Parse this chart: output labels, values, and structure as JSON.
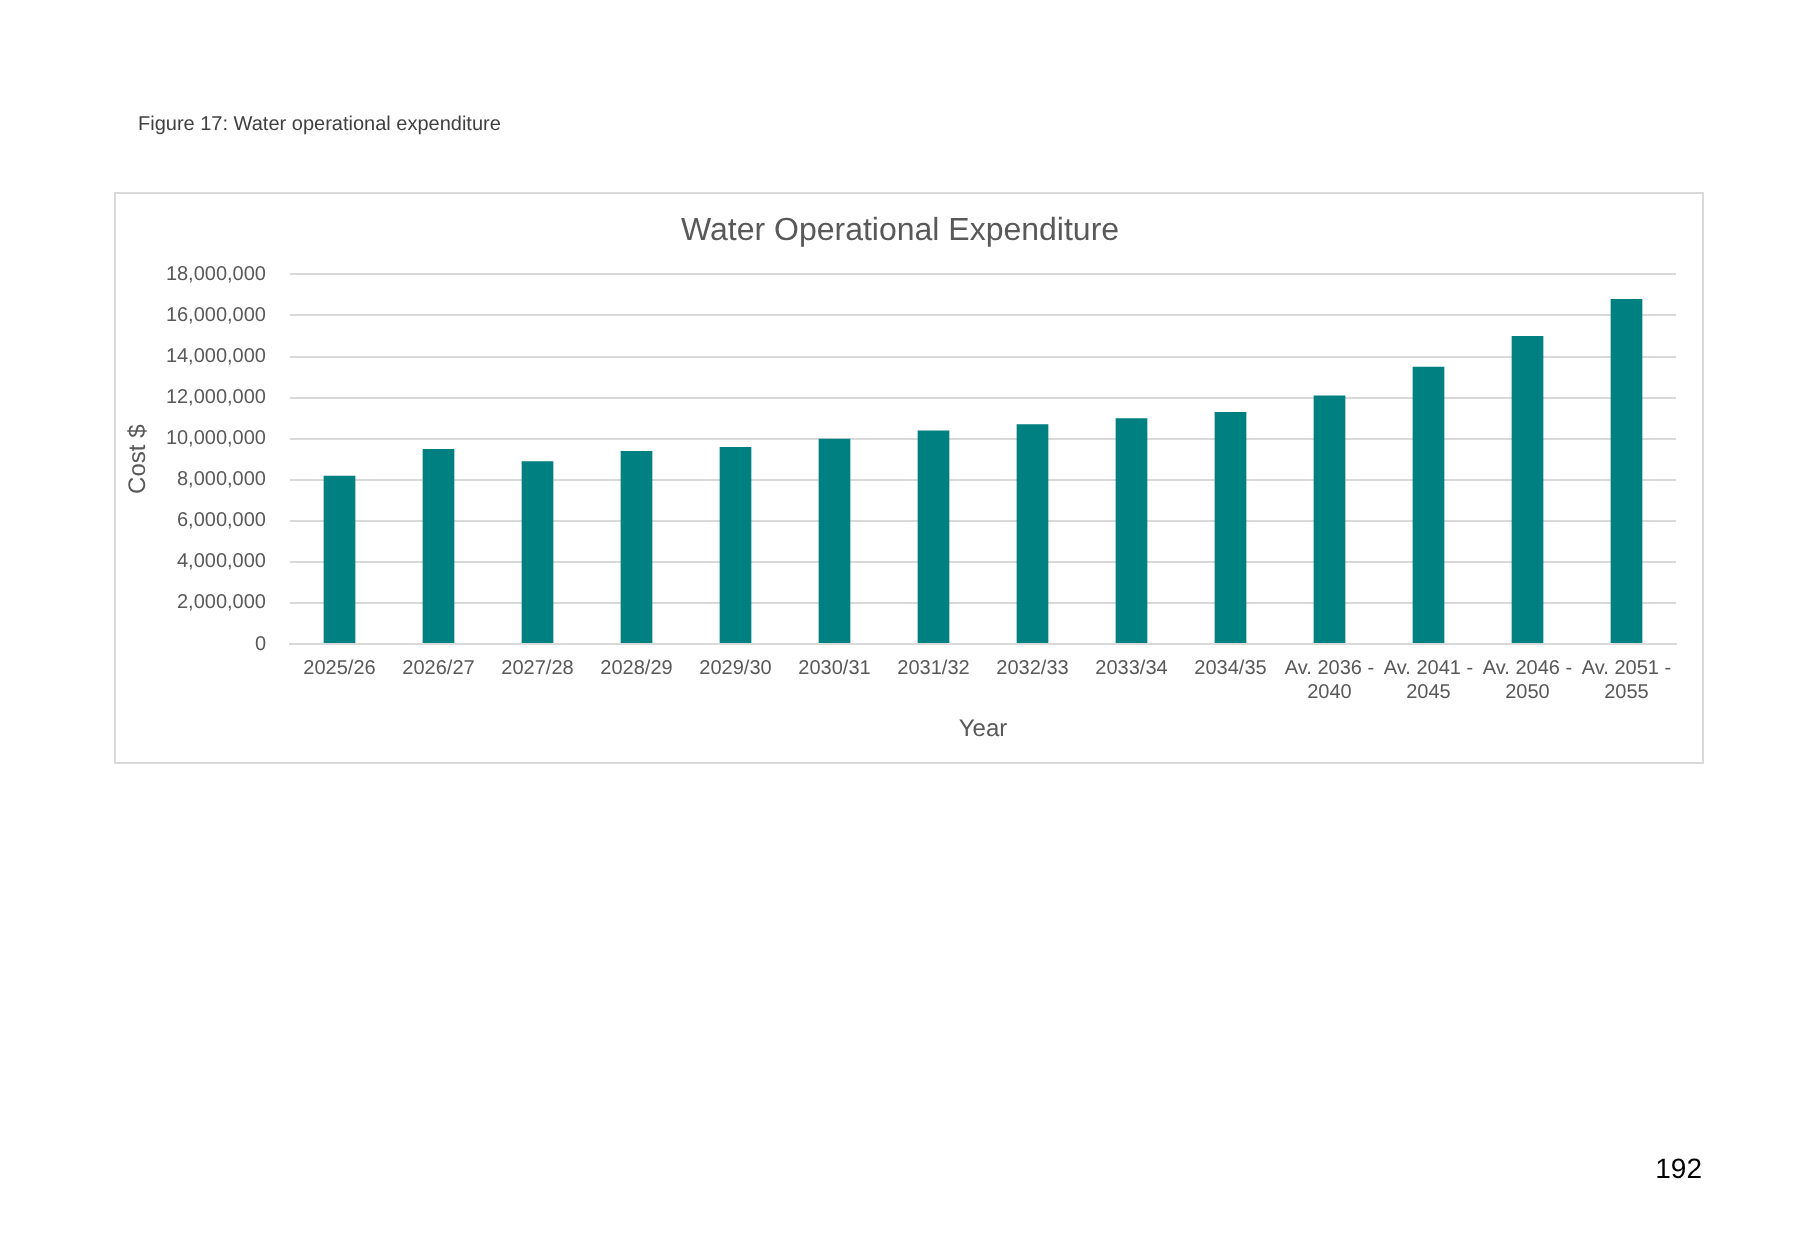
{
  "chart_data": {
    "type": "bar",
    "title": "Water Operational Expenditure",
    "xlabel": "Year",
    "ylabel": "Cost $",
    "categories": [
      "2025/26",
      "2026/27",
      "2027/28",
      "2028/29",
      "2029/30",
      "2030/31",
      "2031/32",
      "2032/33",
      "2033/34",
      "2034/35",
      "Av. 2036 - 2040",
      "Av. 2041 - 2045",
      "Av. 2046 - 2050",
      "Av. 2051 - 2055"
    ],
    "values": [
      8200000,
      9500000,
      8900000,
      9400000,
      9600000,
      10000000,
      10400000,
      10700000,
      11000000,
      11300000,
      12100000,
      13500000,
      15000000,
      16800000
    ],
    "color": "#008080",
    "ylim": [
      0,
      18000000
    ],
    "yticks": [
      {
        "value": 0,
        "label": "0"
      },
      {
        "value": 2000000,
        "label": "2,000,000"
      },
      {
        "value": 4000000,
        "label": "4,000,000"
      },
      {
        "value": 6000000,
        "label": "6,000,000"
      },
      {
        "value": 8000000,
        "label": "8,000,000"
      },
      {
        "value": 10000000,
        "label": "10,000,000"
      },
      {
        "value": 12000000,
        "label": "12,000,000"
      },
      {
        "value": 14000000,
        "label": "14,000,000"
      },
      {
        "value": 16000000,
        "label": "16,000,000"
      },
      {
        "value": 18000000,
        "label": "18,000,000"
      }
    ],
    "grid": "y",
    "annotations": [
      "Figure 17: Water operational expenditure",
      "192"
    ]
  }
}
